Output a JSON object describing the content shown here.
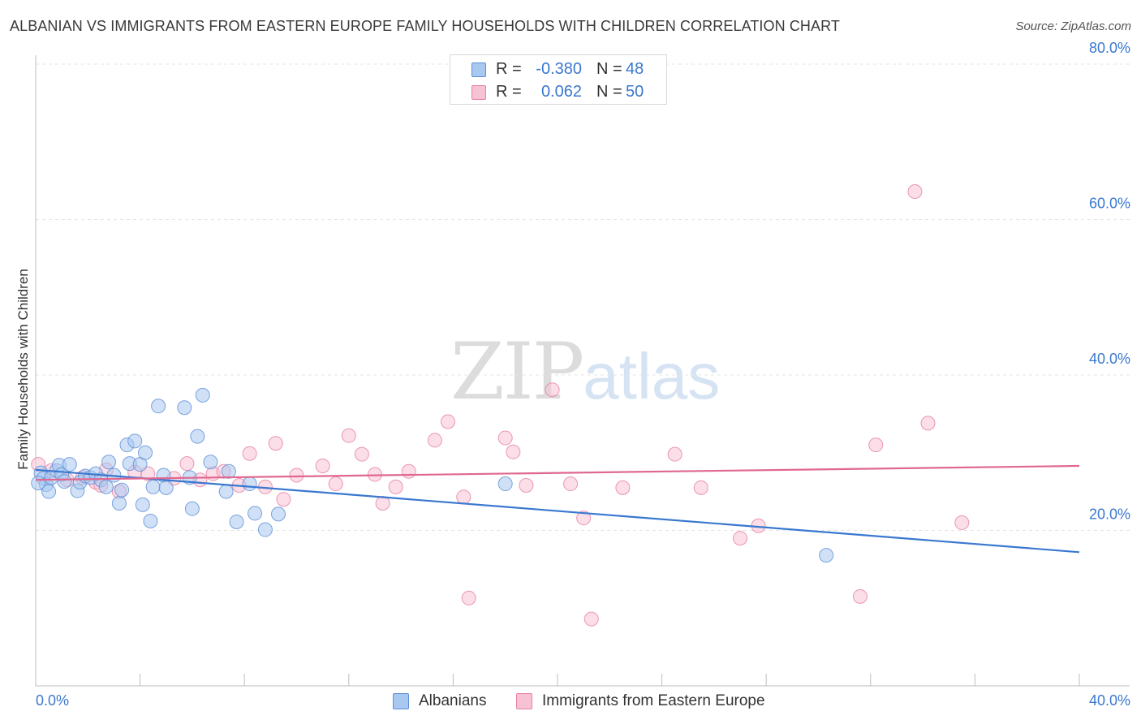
{
  "header": {
    "title": "ALBANIAN VS IMMIGRANTS FROM EASTERN EUROPE FAMILY HOUSEHOLDS WITH CHILDREN CORRELATION CHART",
    "source": "Source: ZipAtlas.com"
  },
  "watermark": {
    "zip": "ZIP",
    "atlas": "atlas"
  },
  "legend_top": {
    "rows": [
      {
        "r_label": "R =",
        "r_value": "-0.380",
        "n_label": "N =",
        "n_value": "48",
        "color": "#a9c8f0",
        "border": "#5b8fd6"
      },
      {
        "r_label": "R =",
        "r_value": "0.062",
        "n_label": "N =",
        "n_value": "50",
        "color": "#f7c2d3",
        "border": "#e67fa3"
      }
    ]
  },
  "legend_bottom": [
    {
      "label": "Albanians",
      "color": "#a9c8f0",
      "border": "#5b8fd6"
    },
    {
      "label": "Immigrants from Eastern Europe",
      "color": "#f7c2d3",
      "border": "#e67fa3"
    }
  ],
  "chart_data": {
    "type": "scatter",
    "title": "ALBANIAN VS IMMIGRANTS FROM EASTERN EUROPE FAMILY HOUSEHOLDS WITH CHILDREN CORRELATION CHART",
    "xlabel": "",
    "ylabel": "Family Households with Children",
    "xlim": [
      0,
      40
    ],
    "ylim": [
      0,
      80
    ],
    "x_tick_labels": [
      "0.0%",
      "40.0%"
    ],
    "y_ticks": [
      20,
      40,
      60,
      80
    ],
    "y_tick_labels": [
      "20.0%",
      "40.0%",
      "60.0%",
      "80.0%"
    ],
    "grid": true,
    "legend_position": "top-center",
    "series": [
      {
        "name": "Albanians",
        "color": "#a9c8f0",
        "stroke": "#5b8fd6",
        "trend_color": "#3a78d0",
        "trend": {
          "x0": 0,
          "y0": 27.8,
          "x1": 40,
          "y1": 17.2
        },
        "points": [
          [
            0.2,
            27.4
          ],
          [
            0.3,
            26.7
          ],
          [
            0.4,
            25.9
          ],
          [
            0.5,
            25.0
          ],
          [
            0.6,
            26.8
          ],
          [
            0.8,
            27.7
          ],
          [
            0.9,
            28.4
          ],
          [
            1.0,
            27.2
          ],
          [
            1.1,
            26.3
          ],
          [
            1.3,
            28.5
          ],
          [
            1.6,
            25.1
          ],
          [
            1.7,
            26.2
          ],
          [
            1.9,
            27.0
          ],
          [
            2.1,
            26.8
          ],
          [
            2.3,
            27.3
          ],
          [
            2.5,
            26.5
          ],
          [
            2.7,
            25.6
          ],
          [
            2.8,
            28.8
          ],
          [
            3.0,
            27.1
          ],
          [
            3.2,
            23.5
          ],
          [
            3.3,
            25.2
          ],
          [
            3.5,
            31.0
          ],
          [
            3.6,
            28.6
          ],
          [
            3.8,
            31.5
          ],
          [
            4.0,
            28.5
          ],
          [
            4.1,
            23.3
          ],
          [
            4.2,
            30.0
          ],
          [
            4.4,
            21.2
          ],
          [
            4.5,
            25.6
          ],
          [
            4.7,
            36.0
          ],
          [
            4.9,
            27.1
          ],
          [
            5.0,
            25.5
          ],
          [
            5.7,
            35.8
          ],
          [
            5.9,
            26.8
          ],
          [
            6.0,
            22.8
          ],
          [
            6.2,
            32.1
          ],
          [
            6.4,
            37.4
          ],
          [
            6.7,
            28.8
          ],
          [
            7.3,
            25.0
          ],
          [
            7.4,
            27.6
          ],
          [
            7.7,
            21.1
          ],
          [
            8.2,
            26.0
          ],
          [
            8.4,
            22.2
          ],
          [
            8.8,
            20.1
          ],
          [
            9.3,
            22.1
          ],
          [
            18.0,
            26.0
          ],
          [
            30.3,
            16.8
          ],
          [
            0.1,
            26.1
          ]
        ]
      },
      {
        "name": "Immigrants from Eastern Europe",
        "color": "#f7c2d3",
        "stroke": "#e67fa3",
        "trend_color": "#e0688f",
        "trend": {
          "x0": 0,
          "y0": 26.5,
          "x1": 40,
          "y1": 28.3
        },
        "points": [
          [
            0.1,
            28.5
          ],
          [
            0.6,
            27.7
          ],
          [
            1.2,
            26.5
          ],
          [
            1.8,
            26.8
          ],
          [
            2.3,
            26.2
          ],
          [
            2.5,
            25.8
          ],
          [
            2.7,
            27.8
          ],
          [
            3.2,
            25.0
          ],
          [
            3.8,
            27.5
          ],
          [
            4.3,
            27.3
          ],
          [
            5.3,
            26.7
          ],
          [
            5.8,
            28.6
          ],
          [
            6.3,
            26.5
          ],
          [
            6.8,
            27.3
          ],
          [
            7.2,
            27.6
          ],
          [
            7.8,
            25.8
          ],
          [
            8.2,
            29.9
          ],
          [
            8.8,
            25.6
          ],
          [
            9.2,
            31.2
          ],
          [
            9.5,
            24.0
          ],
          [
            10.0,
            27.1
          ],
          [
            11.0,
            28.3
          ],
          [
            11.5,
            26.0
          ],
          [
            12.0,
            32.2
          ],
          [
            12.5,
            29.8
          ],
          [
            13.0,
            27.2
          ],
          [
            13.3,
            23.5
          ],
          [
            13.8,
            25.6
          ],
          [
            14.3,
            27.6
          ],
          [
            15.3,
            31.6
          ],
          [
            15.8,
            34.0
          ],
          [
            16.4,
            24.3
          ],
          [
            16.6,
            11.3
          ],
          [
            18.0,
            31.9
          ],
          [
            18.3,
            30.1
          ],
          [
            18.8,
            25.8
          ],
          [
            19.8,
            38.1
          ],
          [
            20.5,
            26.0
          ],
          [
            21.0,
            21.6
          ],
          [
            21.3,
            8.6
          ],
          [
            22.5,
            25.5
          ],
          [
            24.5,
            29.8
          ],
          [
            25.5,
            25.5
          ],
          [
            27.0,
            19.0
          ],
          [
            27.7,
            20.6
          ],
          [
            31.6,
            11.5
          ],
          [
            32.2,
            31.0
          ],
          [
            33.7,
            63.6
          ],
          [
            34.2,
            33.8
          ],
          [
            35.5,
            21.0
          ]
        ]
      }
    ]
  }
}
